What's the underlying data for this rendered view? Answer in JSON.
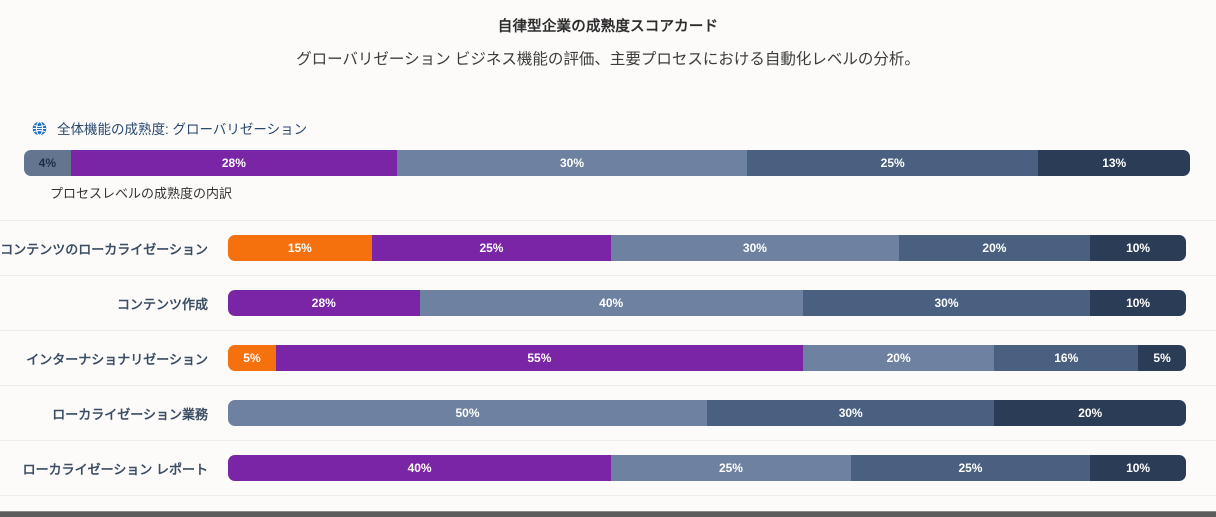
{
  "page": {
    "title": "自律型企業の成熟度スコアカード",
    "subtitle": "グローバリゼーション ビジネス機能の評価、主要プロセスにおける自動化レベルの分析。"
  },
  "palette": {
    "orange": "#f4710d",
    "purple": "#7a24a6",
    "slate_light": "#6e81a0",
    "slate_med": "#4a6080",
    "navy": "#2b3c56",
    "gray": "#64768f",
    "globe_blue": "#1c6ec0"
  },
  "chart_data": {
    "type": "bar",
    "orientation": "horizontal-stacked",
    "unit": "%",
    "overall": {
      "icon": "globe-icon",
      "title": "全体機能の成熟度: グローバリゼーション",
      "segments": [
        {
          "label": "4%",
          "value": 4,
          "color": "gray",
          "text_dark": true
        },
        {
          "label": "28%",
          "value": 28,
          "color": "purple"
        },
        {
          "label": "30%",
          "value": 30,
          "color": "slate_light"
        },
        {
          "label": "25%",
          "value": 25,
          "color": "slate_med"
        },
        {
          "label": "13%",
          "value": 13,
          "color": "navy"
        }
      ]
    },
    "breakdown_title": "プロセスレベルの成熟度の内訳",
    "rows": [
      {
        "label": "コンテンツのローカライゼーション",
        "segments": [
          {
            "label": "15%",
            "value": 15,
            "color": "orange"
          },
          {
            "label": "25%",
            "value": 25,
            "color": "purple"
          },
          {
            "label": "30%",
            "value": 30,
            "color": "slate_light"
          },
          {
            "label": "20%",
            "value": 20,
            "color": "slate_med"
          },
          {
            "label": "10%",
            "value": 10,
            "color": "navy"
          }
        ]
      },
      {
        "label": "コンテンツ作成",
        "segments": [
          {
            "label": "28%",
            "value": 28,
            "w": 20,
            "color": "purple"
          },
          {
            "label": "40%",
            "value": 40,
            "color": "slate_light"
          },
          {
            "label": "30%",
            "value": 30,
            "color": "slate_med"
          },
          {
            "label": "10%",
            "value": 10,
            "color": "navy"
          }
        ]
      },
      {
        "label": "インターナショナリゼーション",
        "segments": [
          {
            "label": "5%",
            "value": 5,
            "color": "orange"
          },
          {
            "label": "55%",
            "value": 55,
            "color": "purple"
          },
          {
            "label": "20%",
            "value": 20,
            "color": "slate_light"
          },
          {
            "label": "16%",
            "value": 16,
            "w": 15,
            "color": "slate_med"
          },
          {
            "label": "5%",
            "value": 5,
            "color": "navy"
          }
        ]
      },
      {
        "label": "ローカライゼーション業務",
        "segments": [
          {
            "label": "50%",
            "value": 50,
            "color": "slate_light"
          },
          {
            "label": "30%",
            "value": 30,
            "color": "slate_med"
          },
          {
            "label": "20%",
            "value": 20,
            "color": "navy"
          }
        ]
      },
      {
        "label": "ローカライゼーション レポート",
        "segments": [
          {
            "label": "40%",
            "value": 40,
            "color": "purple"
          },
          {
            "label": "25%",
            "value": 25,
            "color": "slate_light"
          },
          {
            "label": "25%",
            "value": 25,
            "color": "slate_med"
          },
          {
            "label": "10%",
            "value": 10,
            "color": "navy"
          }
        ]
      }
    ]
  }
}
